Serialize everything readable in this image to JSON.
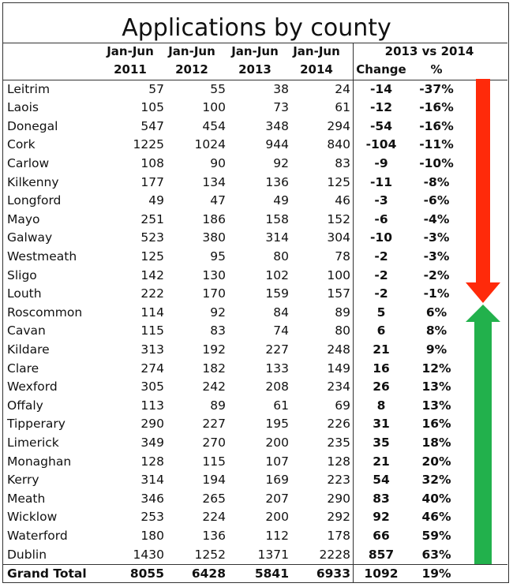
{
  "title": "Applications by county",
  "headers": {
    "col_2011": [
      "Jan-Jun",
      "2011"
    ],
    "col_2012": [
      "Jan-Jun",
      "2012"
    ],
    "col_2013": [
      "Jan-Jun",
      "2013"
    ],
    "col_2014": [
      "Jan-Jun",
      "2014"
    ],
    "group": "2013 vs 2014",
    "change": "Change",
    "pct": "%"
  },
  "rows": [
    {
      "county": "Leitrim",
      "y2011": "57",
      "y2012": "55",
      "y2013": "38",
      "y2014": "24",
      "change": "-14",
      "pct": "-37%"
    },
    {
      "county": "Laois",
      "y2011": "105",
      "y2012": "100",
      "y2013": "73",
      "y2014": "61",
      "change": "-12",
      "pct": "-16%"
    },
    {
      "county": "Donegal",
      "y2011": "547",
      "y2012": "454",
      "y2013": "348",
      "y2014": "294",
      "change": "-54",
      "pct": "-16%"
    },
    {
      "county": "Cork",
      "y2011": "1225",
      "y2012": "1024",
      "y2013": "944",
      "y2014": "840",
      "change": "-104",
      "pct": "-11%"
    },
    {
      "county": "Carlow",
      "y2011": "108",
      "y2012": "90",
      "y2013": "92",
      "y2014": "83",
      "change": "-9",
      "pct": "-10%"
    },
    {
      "county": "Kilkenny",
      "y2011": "177",
      "y2012": "134",
      "y2013": "136",
      "y2014": "125",
      "change": "-11",
      "pct": "-8%"
    },
    {
      "county": "Longford",
      "y2011": "49",
      "y2012": "47",
      "y2013": "49",
      "y2014": "46",
      "change": "-3",
      "pct": "-6%"
    },
    {
      "county": "Mayo",
      "y2011": "251",
      "y2012": "186",
      "y2013": "158",
      "y2014": "152",
      "change": "-6",
      "pct": "-4%"
    },
    {
      "county": "Galway",
      "y2011": "523",
      "y2012": "380",
      "y2013": "314",
      "y2014": "304",
      "change": "-10",
      "pct": "-3%"
    },
    {
      "county": "Westmeath",
      "y2011": "125",
      "y2012": "95",
      "y2013": "80",
      "y2014": "78",
      "change": "-2",
      "pct": "-3%"
    },
    {
      "county": "Sligo",
      "y2011": "142",
      "y2012": "130",
      "y2013": "102",
      "y2014": "100",
      "change": "-2",
      "pct": "-2%"
    },
    {
      "county": "Louth",
      "y2011": "222",
      "y2012": "170",
      "y2013": "159",
      "y2014": "157",
      "change": "-2",
      "pct": "-1%"
    },
    {
      "county": "Roscommon",
      "y2011": "114",
      "y2012": "92",
      "y2013": "84",
      "y2014": "89",
      "change": "5",
      "pct": "6%"
    },
    {
      "county": "Cavan",
      "y2011": "115",
      "y2012": "83",
      "y2013": "74",
      "y2014": "80",
      "change": "6",
      "pct": "8%"
    },
    {
      "county": "Kildare",
      "y2011": "313",
      "y2012": "192",
      "y2013": "227",
      "y2014": "248",
      "change": "21",
      "pct": "9%"
    },
    {
      "county": "Clare",
      "y2011": "274",
      "y2012": "182",
      "y2013": "133",
      "y2014": "149",
      "change": "16",
      "pct": "12%"
    },
    {
      "county": "Wexford",
      "y2011": "305",
      "y2012": "242",
      "y2013": "208",
      "y2014": "234",
      "change": "26",
      "pct": "13%"
    },
    {
      "county": "Offaly",
      "y2011": "113",
      "y2012": "89",
      "y2013": "61",
      "y2014": "69",
      "change": "8",
      "pct": "13%"
    },
    {
      "county": "Tipperary",
      "y2011": "290",
      "y2012": "227",
      "y2013": "195",
      "y2014": "226",
      "change": "31",
      "pct": "16%"
    },
    {
      "county": "Limerick",
      "y2011": "349",
      "y2012": "270",
      "y2013": "200",
      "y2014": "235",
      "change": "35",
      "pct": "18%"
    },
    {
      "county": "Monaghan",
      "y2011": "128",
      "y2012": "115",
      "y2013": "107",
      "y2014": "128",
      "change": "21",
      "pct": "20%"
    },
    {
      "county": "Kerry",
      "y2011": "314",
      "y2012": "194",
      "y2013": "169",
      "y2014": "223",
      "change": "54",
      "pct": "32%"
    },
    {
      "county": "Meath",
      "y2011": "346",
      "y2012": "265",
      "y2013": "207",
      "y2014": "290",
      "change": "83",
      "pct": "40%"
    },
    {
      "county": "Wicklow",
      "y2011": "253",
      "y2012": "224",
      "y2013": "200",
      "y2014": "292",
      "change": "92",
      "pct": "46%"
    },
    {
      "county": "Waterford",
      "y2011": "180",
      "y2012": "136",
      "y2013": "112",
      "y2014": "178",
      "change": "66",
      "pct": "59%"
    },
    {
      "county": "Dublin",
      "y2011": "1430",
      "y2012": "1252",
      "y2013": "1371",
      "y2014": "2228",
      "change": "857",
      "pct": "63%"
    }
  ],
  "total": {
    "county": "Grand Total",
    "y2011": "8055",
    "y2012": "6428",
    "y2013": "5841",
    "y2014": "6933",
    "change": "1092",
    "pct": "19%"
  },
  "colors": {
    "decrease_arrow": "#ff2a0a",
    "increase_arrow": "#22b14c",
    "border": "#333333"
  },
  "arrows": [
    {
      "name": "decrease-arrow",
      "direction": "down",
      "color_key": "decrease_arrow"
    },
    {
      "name": "increase-arrow",
      "direction": "up",
      "color_key": "increase_arrow"
    }
  ]
}
